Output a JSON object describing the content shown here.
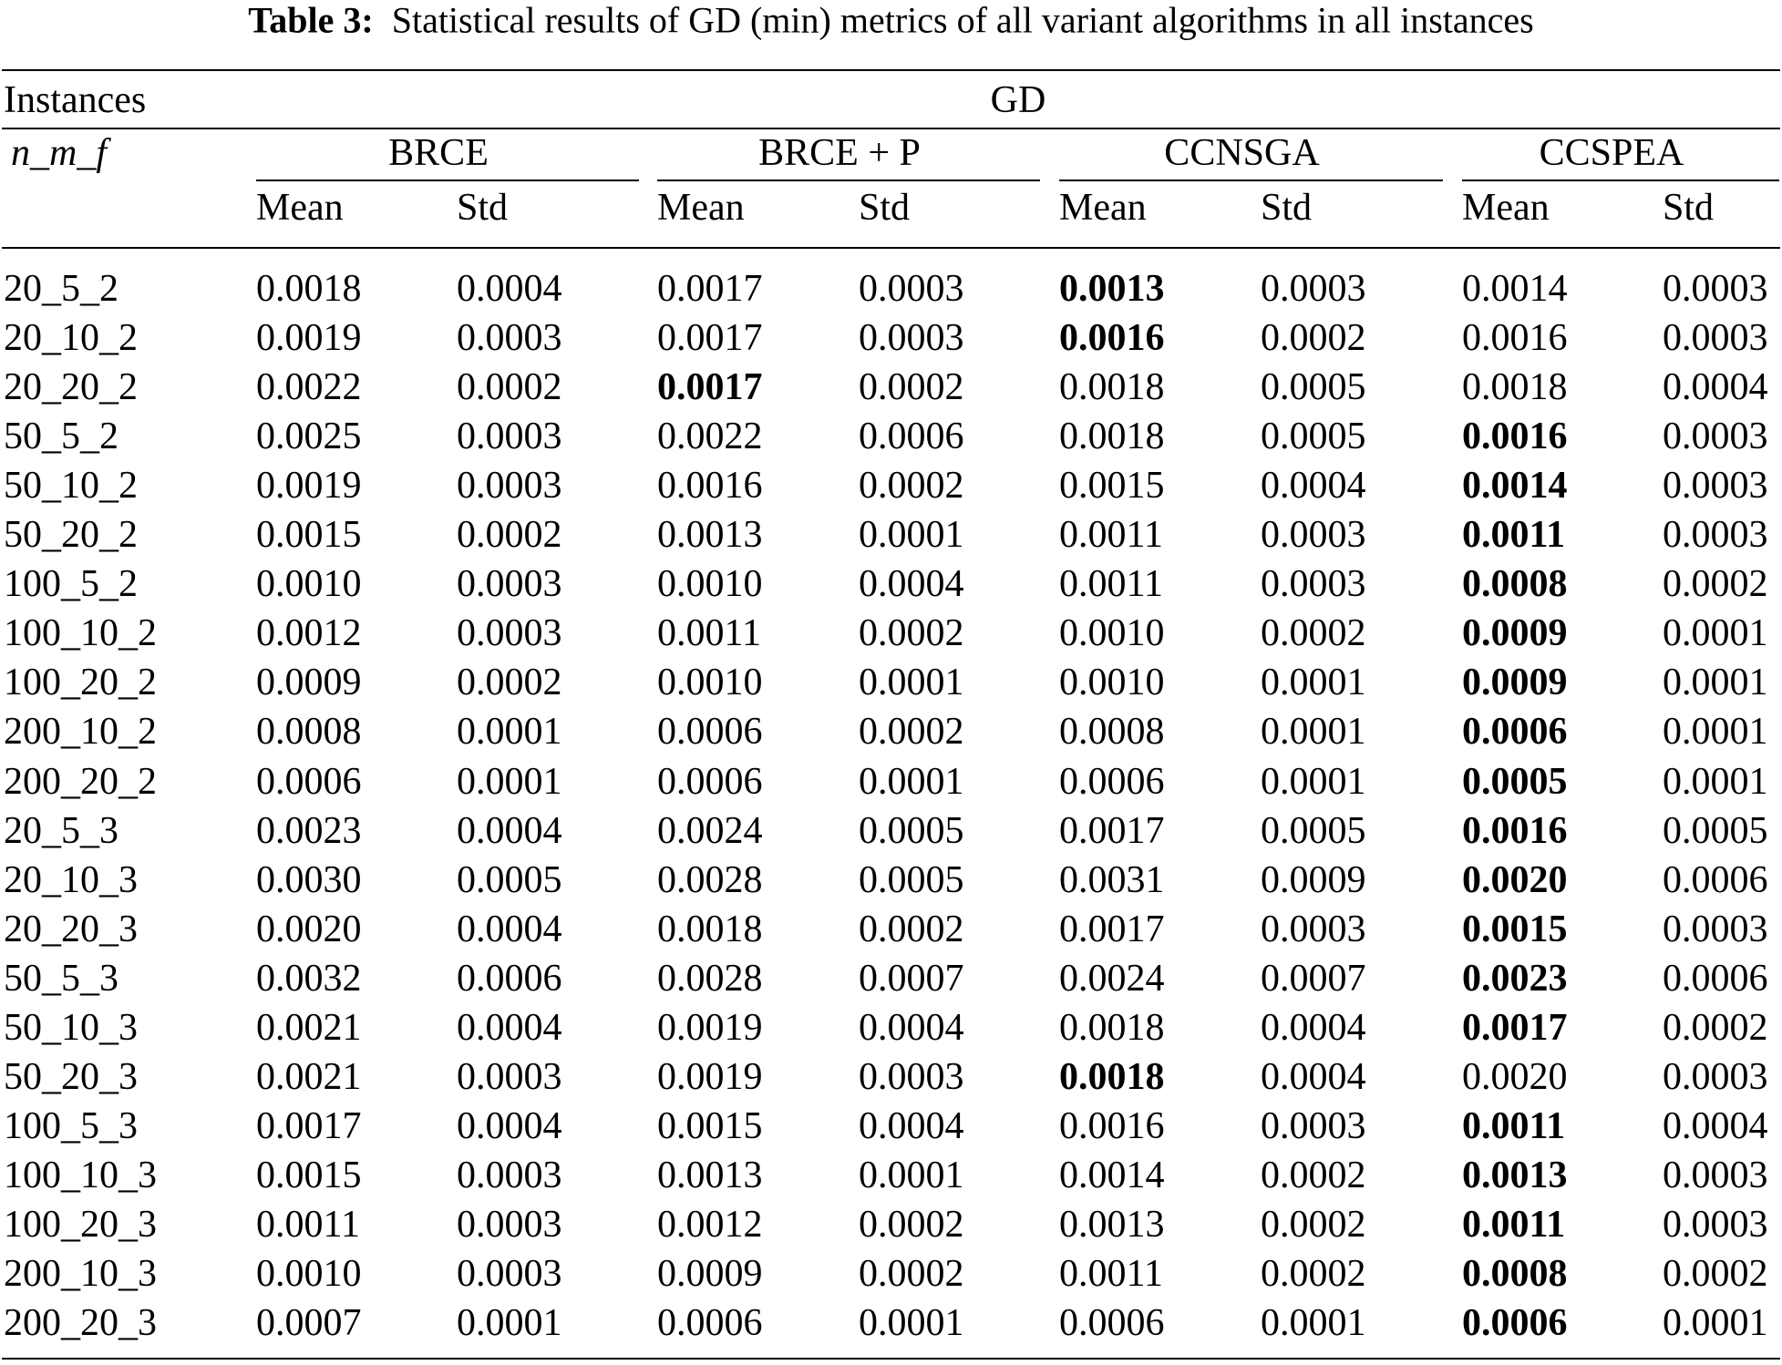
{
  "caption": {
    "label": "Table 3:",
    "text": "Statistical results of GD (min) metrics of all variant algorithms in all instances"
  },
  "header": {
    "instances": "Instances",
    "metric": "GD",
    "instance_format": "n_m_f",
    "algorithms": [
      "BRCE",
      "BRCE + P",
      "CCNSGA",
      "CCSPEA"
    ],
    "stats": [
      "Mean",
      "Std"
    ]
  },
  "rows": [
    {
      "instance": "20_5_2",
      "values": [
        "0.0018",
        "0.0004",
        "0.0017",
        "0.0003",
        "0.0013",
        "0.0003",
        "0.0014",
        "0.0003"
      ],
      "best": 4
    },
    {
      "instance": "20_10_2",
      "values": [
        "0.0019",
        "0.0003",
        "0.0017",
        "0.0003",
        "0.0016",
        "0.0002",
        "0.0016",
        "0.0003"
      ],
      "best": 4
    },
    {
      "instance": "20_20_2",
      "values": [
        "0.0022",
        "0.0002",
        "0.0017",
        "0.0002",
        "0.0018",
        "0.0005",
        "0.0018",
        "0.0004"
      ],
      "best": 2
    },
    {
      "instance": "50_5_2",
      "values": [
        "0.0025",
        "0.0003",
        "0.0022",
        "0.0006",
        "0.0018",
        "0.0005",
        "0.0016",
        "0.0003"
      ],
      "best": 6
    },
    {
      "instance": "50_10_2",
      "values": [
        "0.0019",
        "0.0003",
        "0.0016",
        "0.0002",
        "0.0015",
        "0.0004",
        "0.0014",
        "0.0003"
      ],
      "best": 6
    },
    {
      "instance": "50_20_2",
      "values": [
        "0.0015",
        "0.0002",
        "0.0013",
        "0.0001",
        "0.0011",
        "0.0003",
        "0.0011",
        "0.0003"
      ],
      "best": 6
    },
    {
      "instance": "100_5_2",
      "values": [
        "0.0010",
        "0.0003",
        "0.0010",
        "0.0004",
        "0.0011",
        "0.0003",
        "0.0008",
        "0.0002"
      ],
      "best": 6
    },
    {
      "instance": "100_10_2",
      "values": [
        "0.0012",
        "0.0003",
        "0.0011",
        "0.0002",
        "0.0010",
        "0.0002",
        "0.0009",
        "0.0001"
      ],
      "best": 6
    },
    {
      "instance": "100_20_2",
      "values": [
        "0.0009",
        "0.0002",
        "0.0010",
        "0.0001",
        "0.0010",
        "0.0001",
        "0.0009",
        "0.0001"
      ],
      "best": 6
    },
    {
      "instance": "200_10_2",
      "values": [
        "0.0008",
        "0.0001",
        "0.0006",
        "0.0002",
        "0.0008",
        "0.0001",
        "0.0006",
        "0.0001"
      ],
      "best": 6
    },
    {
      "instance": "200_20_2",
      "values": [
        "0.0006",
        "0.0001",
        "0.0006",
        "0.0001",
        "0.0006",
        "0.0001",
        "0.0005",
        "0.0001"
      ],
      "best": 6
    },
    {
      "instance": "20_5_3",
      "values": [
        "0.0023",
        "0.0004",
        "0.0024",
        "0.0005",
        "0.0017",
        "0.0005",
        "0.0016",
        "0.0005"
      ],
      "best": 6
    },
    {
      "instance": "20_10_3",
      "values": [
        "0.0030",
        "0.0005",
        "0.0028",
        "0.0005",
        "0.0031",
        "0.0009",
        "0.0020",
        "0.0006"
      ],
      "best": 6
    },
    {
      "instance": "20_20_3",
      "values": [
        "0.0020",
        "0.0004",
        "0.0018",
        "0.0002",
        "0.0017",
        "0.0003",
        "0.0015",
        "0.0003"
      ],
      "best": 6
    },
    {
      "instance": "50_5_3",
      "values": [
        "0.0032",
        "0.0006",
        "0.0028",
        "0.0007",
        "0.0024",
        "0.0007",
        "0.0023",
        "0.0006"
      ],
      "best": 6
    },
    {
      "instance": "50_10_3",
      "values": [
        "0.0021",
        "0.0004",
        "0.0019",
        "0.0004",
        "0.0018",
        "0.0004",
        "0.0017",
        "0.0002"
      ],
      "best": 6
    },
    {
      "instance": "50_20_3",
      "values": [
        "0.0021",
        "0.0003",
        "0.0019",
        "0.0003",
        "0.0018",
        "0.0004",
        "0.0020",
        "0.0003"
      ],
      "best": 4
    },
    {
      "instance": "100_5_3",
      "values": [
        "0.0017",
        "0.0004",
        "0.0015",
        "0.0004",
        "0.0016",
        "0.0003",
        "0.0011",
        "0.0004"
      ],
      "best": 6
    },
    {
      "instance": "100_10_3",
      "values": [
        "0.0015",
        "0.0003",
        "0.0013",
        "0.0001",
        "0.0014",
        "0.0002",
        "0.0013",
        "0.0003"
      ],
      "best": 6
    },
    {
      "instance": "100_20_3",
      "values": [
        "0.0011",
        "0.0003",
        "0.0012",
        "0.0002",
        "0.0013",
        "0.0002",
        "0.0011",
        "0.0003"
      ],
      "best": 6
    },
    {
      "instance": "200_10_3",
      "values": [
        "0.0010",
        "0.0003",
        "0.0009",
        "0.0002",
        "0.0011",
        "0.0002",
        "0.0008",
        "0.0002"
      ],
      "best": 6
    },
    {
      "instance": "200_20_3",
      "values": [
        "0.0007",
        "0.0001",
        "0.0006",
        "0.0001",
        "0.0006",
        "0.0001",
        "0.0006",
        "0.0001"
      ],
      "best": 6
    }
  ]
}
